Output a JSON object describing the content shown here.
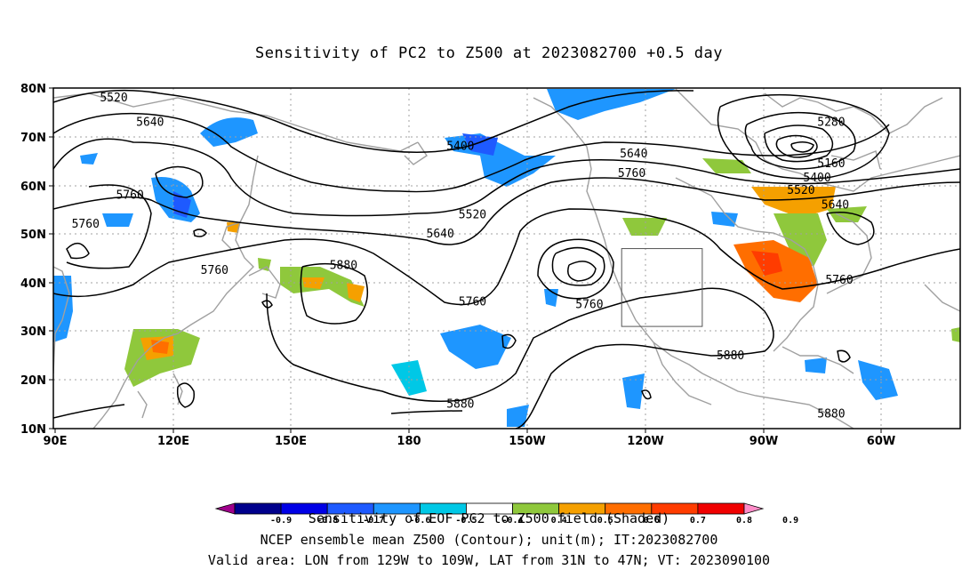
{
  "title": "Sensitivity of PC2 to Z500 at 2023082700 +0.5 day",
  "lat_labels": [
    "80N",
    "70N",
    "60N",
    "50N",
    "40N",
    "30N",
    "20N",
    "10N"
  ],
  "lon_labels": [
    "90E",
    "120E",
    "150E",
    "180",
    "150W",
    "120W",
    "90W",
    "60W"
  ],
  "contour_labels": [
    {
      "text": "5520",
      "lon": 105,
      "lat": 78
    },
    {
      "text": "5640",
      "lon": 114,
      "lat": 73
    },
    {
      "text": "5760",
      "lon": 109,
      "lat": 58
    },
    {
      "text": "5760",
      "lon": 98,
      "lat": 52
    },
    {
      "text": "5760",
      "lon": 130,
      "lat": 42.5
    },
    {
      "text": "5880",
      "lon": 162,
      "lat": 43.5
    },
    {
      "text": "5400",
      "lon": 191,
      "lat": 68
    },
    {
      "text": "5520",
      "lon": 194,
      "lat": 54
    },
    {
      "text": "5640",
      "lon": 186,
      "lat": 50
    },
    {
      "text": "5760",
      "lon": 194,
      "lat": 36
    },
    {
      "text": "5760",
      "lon": 223,
      "lat": 35.5
    },
    {
      "text": "5640",
      "lon": 234,
      "lat": 66.5
    },
    {
      "text": "5760",
      "lon": 233.5,
      "lat": 62.5
    },
    {
      "text": "5880",
      "lon": 191,
      "lat": 15
    },
    {
      "text": "5880",
      "lon": 258,
      "lat": 25
    },
    {
      "text": "5280",
      "lon": 283,
      "lat": 73
    },
    {
      "text": "5160",
      "lon": 283,
      "lat": 64.5
    },
    {
      "text": "5400",
      "lon": 279.5,
      "lat": 61.5
    },
    {
      "text": "5520",
      "lon": 275.5,
      "lat": 59
    },
    {
      "text": "5640",
      "lon": 284,
      "lat": 56
    },
    {
      "text": "5760",
      "lon": 285,
      "lat": 40.5
    },
    {
      "text": "5880",
      "lon": 283,
      "lat": 13
    }
  ],
  "valid_box": {
    "lon_min": 231,
    "lon_max": 251,
    "lat_min": 31,
    "lat_max": 47
  },
  "colorbar": {
    "colors": [
      "#a0008c",
      "#00008c",
      "#0000e6",
      "#1e5aff",
      "#1e96ff",
      "#00c8e6",
      "#ffffff",
      "#8fc83c",
      "#f5a000",
      "#ff6e00",
      "#ff3c00",
      "#f00000",
      "#ff8cc8"
    ],
    "ticks": [
      "-0.9",
      "-0.8",
      "-0.7",
      "-0.6",
      "-0.5",
      "-0.4",
      "0.4",
      "0.5",
      "0.6",
      "0.7",
      "0.8",
      "0.9"
    ]
  },
  "captions": {
    "line1": "Sensitivity of EOF PC2 to Z500 field (Shaded)",
    "line2": "NCEP ensemble mean Z500 (Contour); unit(m); IT:2023082700",
    "line3": "Valid area: LON from 129W to 109W, LAT from 31N to 47N; VT: 2023090100"
  }
}
